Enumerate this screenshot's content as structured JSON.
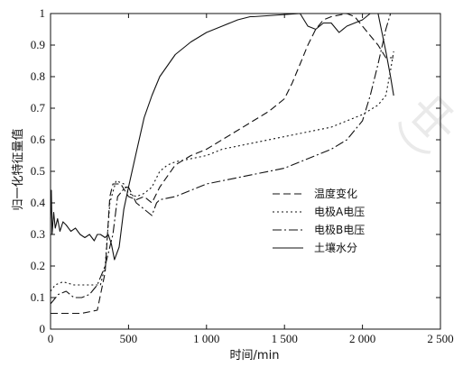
{
  "chart_data": {
    "type": "line",
    "xlabel": "时间/min",
    "ylabel": "归一化特征量值",
    "xlim": [
      0,
      2500
    ],
    "ylim": [
      0,
      1
    ],
    "x_ticks": [
      0,
      500,
      1000,
      1500,
      2000,
      2500
    ],
    "x_tick_labels": [
      "0",
      "500",
      "1 000",
      "1 500",
      "2 000",
      "2 500"
    ],
    "y_ticks": [
      0,
      0.1,
      0.2,
      0.3,
      0.4,
      0.5,
      0.6,
      0.7,
      0.8,
      0.9,
      1
    ],
    "y_tick_labels": [
      "0",
      "0.1",
      "0.2",
      "0.3",
      "0.4",
      "0.5",
      "0.6",
      "0.7",
      "0.8",
      "0.9",
      "1"
    ],
    "grid": false,
    "legend_position": "right",
    "series": [
      {
        "name": "温度变化",
        "dash": "8,4",
        "points": [
          [
            0,
            0.05
          ],
          [
            100,
            0.05
          ],
          [
            200,
            0.05
          ],
          [
            300,
            0.06
          ],
          [
            350,
            0.18
          ],
          [
            380,
            0.42
          ],
          [
            400,
            0.46
          ],
          [
            450,
            0.46
          ],
          [
            500,
            0.42
          ],
          [
            550,
            0.41
          ],
          [
            600,
            0.42
          ],
          [
            650,
            0.4
          ],
          [
            700,
            0.45
          ],
          [
            800,
            0.52
          ],
          [
            900,
            0.55
          ],
          [
            1000,
            0.57
          ],
          [
            1100,
            0.6
          ],
          [
            1200,
            0.63
          ],
          [
            1300,
            0.66
          ],
          [
            1400,
            0.69
          ],
          [
            1500,
            0.73
          ],
          [
            1550,
            0.78
          ],
          [
            1600,
            0.84
          ],
          [
            1650,
            0.9
          ],
          [
            1700,
            0.95
          ],
          [
            1750,
            0.98
          ],
          [
            1800,
            0.99
          ],
          [
            1900,
            1.0
          ],
          [
            1950,
            0.99
          ],
          [
            2000,
            0.96
          ],
          [
            2050,
            0.93
          ],
          [
            2100,
            0.9
          ],
          [
            2150,
            0.86
          ],
          [
            2200,
            0.86
          ]
        ]
      },
      {
        "name": "电极A电压",
        "dash": "2,3",
        "points": [
          [
            0,
            0.12
          ],
          [
            30,
            0.14
          ],
          [
            80,
            0.15
          ],
          [
            150,
            0.14
          ],
          [
            250,
            0.14
          ],
          [
            320,
            0.14
          ],
          [
            350,
            0.2
          ],
          [
            380,
            0.4
          ],
          [
            420,
            0.47
          ],
          [
            470,
            0.46
          ],
          [
            500,
            0.43
          ],
          [
            550,
            0.42
          ],
          [
            600,
            0.43
          ],
          [
            650,
            0.45
          ],
          [
            700,
            0.5
          ],
          [
            750,
            0.52
          ],
          [
            800,
            0.53
          ],
          [
            900,
            0.54
          ],
          [
            1000,
            0.55
          ],
          [
            1100,
            0.57
          ],
          [
            1200,
            0.58
          ],
          [
            1300,
            0.59
          ],
          [
            1400,
            0.6
          ],
          [
            1500,
            0.61
          ],
          [
            1600,
            0.62
          ],
          [
            1700,
            0.63
          ],
          [
            1800,
            0.64
          ],
          [
            1900,
            0.66
          ],
          [
            2000,
            0.68
          ],
          [
            2100,
            0.71
          ],
          [
            2150,
            0.74
          ],
          [
            2180,
            0.82
          ],
          [
            2200,
            0.88
          ]
        ]
      },
      {
        "name": "电极B电压",
        "dash": "10,3,2,3",
        "points": [
          [
            0,
            0.08
          ],
          [
            50,
            0.11
          ],
          [
            100,
            0.12
          ],
          [
            150,
            0.1
          ],
          [
            200,
            0.1
          ],
          [
            250,
            0.11
          ],
          [
            300,
            0.14
          ],
          [
            350,
            0.2
          ],
          [
            400,
            0.3
          ],
          [
            430,
            0.42
          ],
          [
            480,
            0.45
          ],
          [
            500,
            0.45
          ],
          [
            550,
            0.4
          ],
          [
            600,
            0.38
          ],
          [
            650,
            0.36
          ],
          [
            680,
            0.4
          ],
          [
            700,
            0.41
          ],
          [
            800,
            0.42
          ],
          [
            900,
            0.44
          ],
          [
            1000,
            0.46
          ],
          [
            1100,
            0.47
          ],
          [
            1200,
            0.48
          ],
          [
            1300,
            0.49
          ],
          [
            1400,
            0.5
          ],
          [
            1500,
            0.51
          ],
          [
            1600,
            0.53
          ],
          [
            1700,
            0.55
          ],
          [
            1800,
            0.57
          ],
          [
            1900,
            0.6
          ],
          [
            2000,
            0.66
          ],
          [
            2050,
            0.74
          ],
          [
            2100,
            0.84
          ],
          [
            2150,
            0.95
          ],
          [
            2180,
            1.0
          ],
          [
            2220,
            1.0
          ]
        ]
      },
      {
        "name": "土壤水分",
        "dash": "",
        "points": [
          [
            0,
            0.35
          ],
          [
            5,
            0.44
          ],
          [
            10,
            0.3
          ],
          [
            20,
            0.37
          ],
          [
            30,
            0.32
          ],
          [
            45,
            0.35
          ],
          [
            60,
            0.31
          ],
          [
            80,
            0.34
          ],
          [
            100,
            0.33
          ],
          [
            130,
            0.31
          ],
          [
            160,
            0.32
          ],
          [
            190,
            0.3
          ],
          [
            220,
            0.29
          ],
          [
            250,
            0.3
          ],
          [
            280,
            0.28
          ],
          [
            300,
            0.3
          ],
          [
            320,
            0.3
          ],
          [
            350,
            0.29
          ],
          [
            370,
            0.3
          ],
          [
            390,
            0.27
          ],
          [
            410,
            0.22
          ],
          [
            440,
            0.26
          ],
          [
            470,
            0.38
          ],
          [
            500,
            0.45
          ],
          [
            550,
            0.56
          ],
          [
            600,
            0.67
          ],
          [
            650,
            0.74
          ],
          [
            700,
            0.8
          ],
          [
            800,
            0.87
          ],
          [
            900,
            0.91
          ],
          [
            1000,
            0.94
          ],
          [
            1100,
            0.96
          ],
          [
            1200,
            0.98
          ],
          [
            1280,
            0.99
          ],
          [
            1300,
            0.99
          ],
          [
            1600,
            1.0
          ],
          [
            1650,
            0.96
          ],
          [
            1700,
            0.95
          ],
          [
            1750,
            0.97
          ],
          [
            1800,
            0.97
          ],
          [
            1850,
            0.94
          ],
          [
            1900,
            0.96
          ],
          [
            2000,
            0.98
          ],
          [
            2050,
            1.0
          ],
          [
            2100,
            1.0
          ],
          [
            2150,
            0.88
          ],
          [
            2180,
            0.8
          ],
          [
            2200,
            0.74
          ]
        ]
      }
    ]
  },
  "watermark": "（中",
  "colors": {
    "line": "#111111",
    "axis": "#111111"
  }
}
